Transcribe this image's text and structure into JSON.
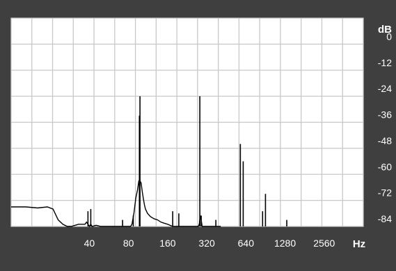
{
  "chart_data": {
    "type": "line",
    "title": "",
    "xlabel": "Hz",
    "ylabel": "dB",
    "x_scale": "log2",
    "xlim": [
      10,
      5120
    ],
    "ylim": [
      -84,
      12
    ],
    "x_ticks": [
      40,
      80,
      160,
      320,
      640,
      1280,
      2560
    ],
    "x_tick_labels": [
      "40",
      "80",
      "160",
      "320",
      "640",
      "1280",
      "2560"
    ],
    "y_ticks": [
      0,
      -12,
      -24,
      -36,
      -48,
      -60,
      -72,
      -84
    ],
    "y_tick_labels": [
      "0",
      "-12",
      "-24",
      "-36",
      "-48",
      "-60",
      "-72",
      "-84"
    ],
    "grid": true,
    "colors": {
      "background": "#3f3f3f",
      "plot": "#ffffff",
      "grid": "#c8c8c8",
      "trace": "#000000",
      "text": "#ffffff"
    },
    "series": [
      {
        "x": [
          10,
          13,
          16,
          19,
          21,
          23,
          25,
          27,
          29,
          31,
          33,
          35,
          37,
          38,
          39,
          40,
          41,
          42,
          45,
          49,
          53,
          57,
          60,
          63,
          66,
          69,
          72,
          75,
          76,
          77,
          78,
          79,
          80,
          81,
          83,
          85,
          88,
          91,
          94,
          96,
          98,
          100,
          102,
          104,
          106,
          108,
          112,
          118,
          126,
          134,
          142,
          150,
          160,
          175,
          190,
          210,
          230,
          250,
          265,
          275,
          280,
          285,
          290,
          295,
          300,
          305,
          310,
          315,
          320,
          330,
          345,
          360,
          375,
          390,
          410
        ],
        "y": [
          -75,
          -75,
          -75.5,
          -75,
          -76,
          -81,
          -83,
          -84,
          -84,
          -83.5,
          -83,
          -83,
          -83,
          -82,
          -83,
          -84,
          -83,
          -84,
          -83.5,
          -84,
          -84.5,
          -84,
          -84,
          -85,
          -85,
          -85.5,
          -86,
          -86,
          -87,
          -86,
          -87,
          -87,
          -87,
          -87,
          -86,
          -83,
          -78,
          -71,
          -67,
          -63,
          -63,
          -64,
          -68,
          -71,
          -74,
          -76,
          -78,
          -79.5,
          -80.5,
          -81,
          -82,
          -82.5,
          -83,
          -84,
          -85,
          -86,
          -86.5,
          -87,
          -87,
          -86,
          -83,
          -79,
          -81,
          -84,
          -86,
          -86.5,
          -87,
          -87,
          -87,
          -87.5,
          -88,
          -88,
          -88.5,
          -88.5,
          -88.5
        ]
      }
    ],
    "peaks": [
      {
        "x": 39,
        "y": -77
      },
      {
        "x": 41,
        "y": -76
      },
      {
        "x": 72,
        "y": -81
      },
      {
        "x": 87,
        "y": -79
      },
      {
        "x": 98,
        "y": -24
      },
      {
        "x": 97,
        "y": -33
      },
      {
        "x": 175,
        "y": -77
      },
      {
        "x": 195,
        "y": -78
      },
      {
        "x": 283,
        "y": -24
      },
      {
        "x": 290,
        "y": -79
      },
      {
        "x": 376,
        "y": -81
      },
      {
        "x": 580,
        "y": -46
      },
      {
        "x": 610,
        "y": -54
      },
      {
        "x": 660,
        "y": -88
      },
      {
        "x": 860,
        "y": -77
      },
      {
        "x": 905,
        "y": -69
      },
      {
        "x": 1320,
        "y": -81
      }
    ]
  }
}
